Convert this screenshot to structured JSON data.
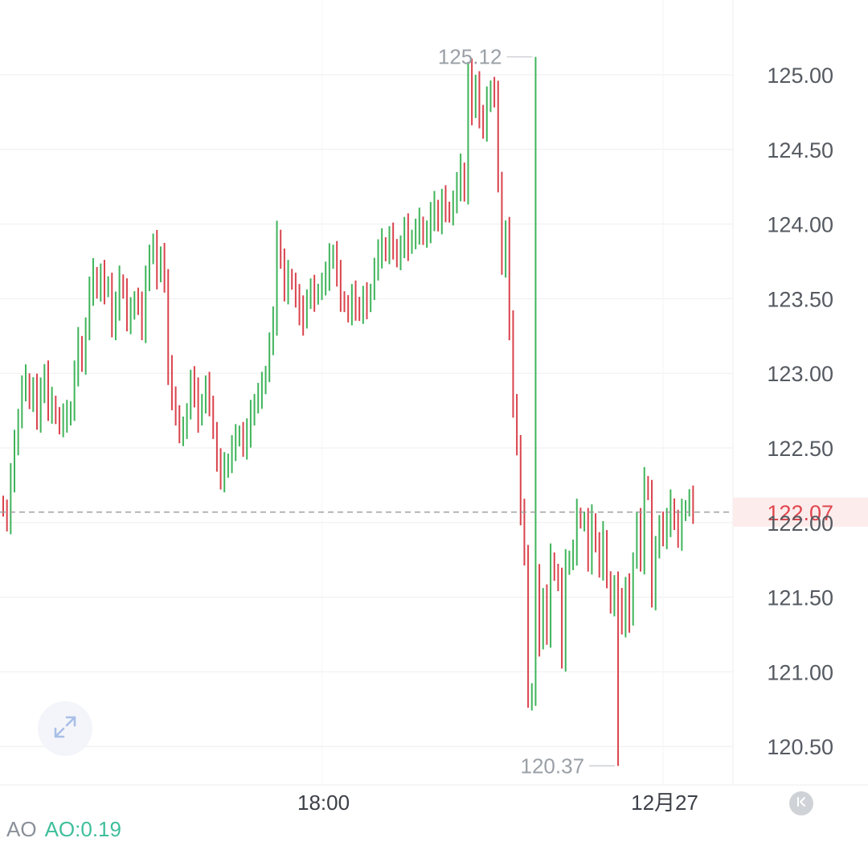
{
  "chart_data": {
    "type": "ohlc",
    "title": "",
    "xlabel": "",
    "ylabel": "",
    "ylim": [
      120.25,
      125.45
    ],
    "y_ticks": [
      {
        "value": 125.0,
        "label": "125.00"
      },
      {
        "value": 124.5,
        "label": "124.50"
      },
      {
        "value": 124.0,
        "label": "124.00"
      },
      {
        "value": 123.5,
        "label": "123.50"
      },
      {
        "value": 123.0,
        "label": "123.00"
      },
      {
        "value": 122.5,
        "label": "122.50"
      },
      {
        "value": 122.0,
        "label": "122.00"
      },
      {
        "value": 121.5,
        "label": "121.50"
      },
      {
        "value": 121.0,
        "label": "121.00"
      },
      {
        "value": 120.5,
        "label": "120.50"
      }
    ],
    "x_ticks": [
      {
        "index": 85,
        "label": "18:00"
      },
      {
        "index": 176,
        "label": "12月27"
      }
    ],
    "last_price": {
      "value": 122.07,
      "label": "122.07"
    },
    "max_marker": {
      "value": 125.12,
      "label": "125.12",
      "index": 142
    },
    "min_marker": {
      "value": 120.37,
      "label": "120.37",
      "index": 164
    },
    "colors": {
      "up": "#3fb45a",
      "down": "#d9434c",
      "last_price": "#e0464d",
      "grid": "#eeeeee"
    },
    "close": [
      122.08,
      122.0,
      122.3,
      122.5,
      122.7,
      122.9,
      122.95,
      122.8,
      122.9,
      122.7,
      122.85,
      123.0,
      122.75,
      122.8,
      122.7,
      122.65,
      122.7,
      122.7,
      122.75,
      123.0,
      123.2,
      123.05,
      123.3,
      123.55,
      123.65,
      123.55,
      123.65,
      123.55,
      123.6,
      123.3,
      123.45,
      123.6,
      123.55,
      123.35,
      123.4,
      123.5,
      123.45,
      123.3,
      123.6,
      123.8,
      123.85,
      123.65,
      123.8,
      123.6,
      123.0,
      122.85,
      122.7,
      122.6,
      122.6,
      122.75,
      122.95,
      122.85,
      122.7,
      122.8,
      122.9,
      122.8,
      122.6,
      122.4,
      122.3,
      122.35,
      122.4,
      122.5,
      122.55,
      122.6,
      122.5,
      122.6,
      122.7,
      122.8,
      122.85,
      122.9,
      123.0,
      123.2,
      123.35,
      123.9,
      123.75,
      123.55,
      123.65,
      123.6,
      123.5,
      123.4,
      123.35,
      123.5,
      123.55,
      123.5,
      123.55,
      123.6,
      123.65,
      123.75,
      123.8,
      123.65,
      123.5,
      123.45,
      123.4,
      123.5,
      123.45,
      123.4,
      123.5,
      123.45,
      123.55,
      123.7,
      123.8,
      123.85,
      123.8,
      123.9,
      123.85,
      123.75,
      123.85,
      123.95,
      123.85,
      123.9,
      123.95,
      124.0,
      123.9,
      123.95,
      124.05,
      124.1,
      124.0,
      124.15,
      124.1,
      124.05,
      124.15,
      124.25,
      124.35,
      124.2,
      125.0,
      124.75,
      124.95,
      124.7,
      124.65,
      124.8,
      124.9,
      124.85,
      124.3,
      123.7,
      123.95,
      123.3,
      122.8,
      122.5,
      122.05,
      121.8,
      120.8,
      120.85,
      121.6,
      121.2,
      121.5,
      121.25,
      121.75,
      121.65,
      121.6,
      121.1,
      121.7,
      121.75,
      121.8,
      122.05,
      122.0,
      122.0,
      121.75,
      122.0,
      121.85,
      121.7,
      121.9,
      121.6,
      121.45,
      121.55,
      121.5,
      121.3,
      121.55,
      121.35,
      121.75,
      122.0,
      121.75,
      122.25,
      122.2,
      121.5,
      121.8,
      122.0,
      121.9,
      122.0,
      122.1,
      122.0,
      121.9,
      122.05,
      122.1,
      122.15,
      122.07
    ]
  },
  "indicator": {
    "name": "AO",
    "value": "AO:0.19"
  },
  "controls": {
    "expand_icon": "expand-arrows-icon",
    "collapse_icon": "collapse-left-icon"
  }
}
